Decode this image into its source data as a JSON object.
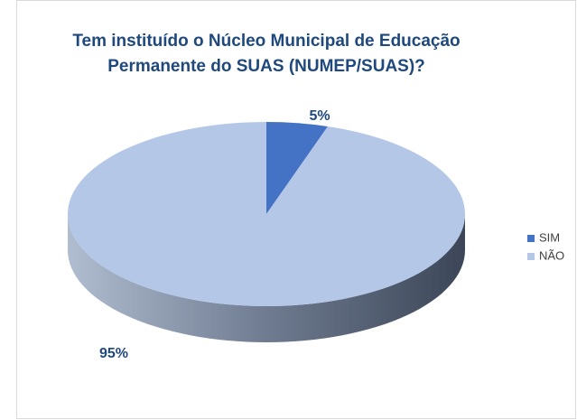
{
  "chart_data": {
    "type": "pie",
    "title": "Tem instituído o Núcleo Municipal de Educação Permanente do SUAS (NUMEP/SUAS)?",
    "categories": [
      "SIM",
      "NÃO"
    ],
    "values": [
      5,
      95
    ],
    "value_labels": [
      "5%",
      "95%"
    ],
    "colors": [
      "#4472c4",
      "#b4c7e7"
    ],
    "legend": "right"
  }
}
